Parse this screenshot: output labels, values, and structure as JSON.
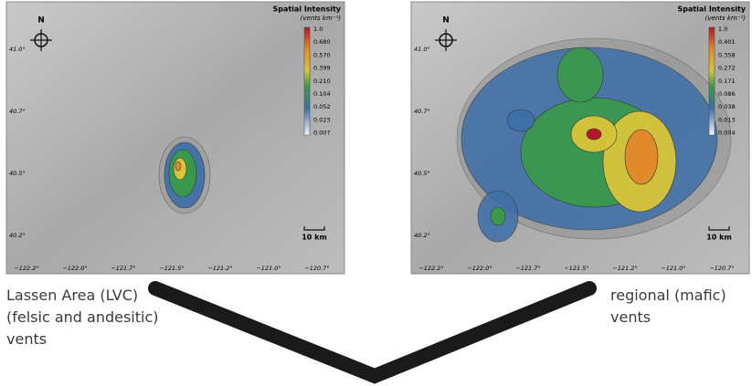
{
  "panels": [
    {
      "north": "N",
      "title": "Spatial Intensity",
      "unit": "(vents km⁻²)",
      "scale_labels": [
        "1.0",
        "0.680",
        "0.570",
        "0.399",
        "0.210",
        "0.104",
        "0.052",
        "0.023",
        "0.007"
      ],
      "lat_labels": [
        "41.0°",
        "40.7°",
        "40.5°",
        "40.2°"
      ],
      "lon_labels": [
        "−122.2°",
        "−122.0°",
        "−121.7°",
        "−121.5°",
        "−121.2°",
        "−121.0°",
        "−120.7°"
      ],
      "scale_bar": "10 km",
      "caption": [
        "Lassen Area (LVC)",
        "(felsic and andesitic)",
        "vents"
      ]
    },
    {
      "north": "N",
      "title": "Spatial Intensity",
      "unit": "(vents km⁻²)",
      "scale_labels": [
        "1.0",
        "0.401",
        "0.358",
        "0.272",
        "0.171",
        "0.086",
        "0.038",
        "0.013",
        "0.004"
      ],
      "lat_labels": [
        "41.0°",
        "40.7°",
        "40.5°",
        "40.2°"
      ],
      "lon_labels": [
        "−122.2°",
        "−122.0°",
        "−121.7°",
        "−121.5°",
        "−121.2°",
        "−121.0°",
        "−120.7°"
      ],
      "scale_bar": "10 km",
      "caption": [
        "regional (mafic)",
        "vents"
      ]
    }
  ]
}
